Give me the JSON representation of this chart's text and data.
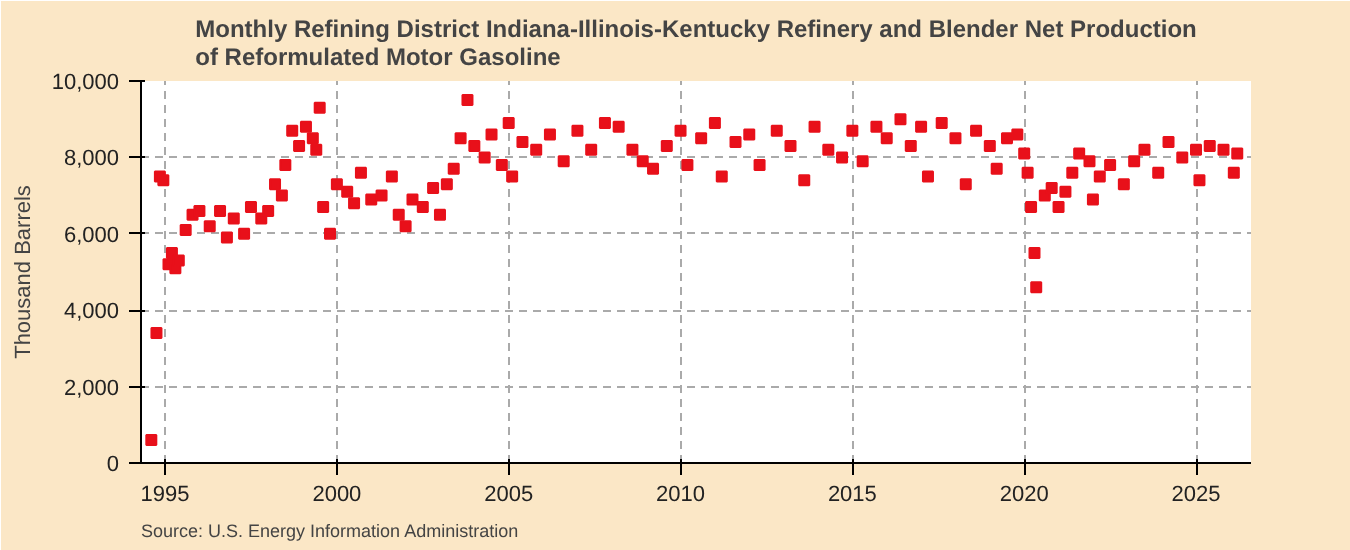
{
  "chart_data": {
    "type": "scatter",
    "title": "Monthly Refining District Indiana-Illinois-Kentucky Refinery and Blender Net Production of Reformulated Motor Gasoline",
    "ylabel": "Thousand Barrels",
    "annotations": [
      "Source: U.S. Energy Information Administration"
    ],
    "x": [
      1994.6,
      1994.75,
      1994.85,
      1994.95,
      1995.1,
      1995.2,
      1995.3,
      1995.4,
      1995.6,
      1995.8,
      1996.0,
      1996.3,
      1996.6,
      1996.8,
      1997.0,
      1997.3,
      1997.5,
      1997.8,
      1998.0,
      1998.2,
      1998.4,
      1998.5,
      1998.7,
      1998.9,
      1999.1,
      1999.3,
      1999.4,
      1999.5,
      1999.6,
      1999.8,
      2000.0,
      2000.3,
      2000.5,
      2000.7,
      2001.0,
      2001.3,
      2001.6,
      2001.8,
      2002.0,
      2002.2,
      2002.5,
      2002.8,
      2003.0,
      2003.2,
      2003.4,
      2003.6,
      2003.8,
      2004.0,
      2004.3,
      2004.5,
      2004.8,
      2005.0,
      2005.1,
      2005.4,
      2005.8,
      2006.2,
      2006.6,
      2007.0,
      2007.4,
      2007.8,
      2008.2,
      2008.6,
      2008.9,
      2009.2,
      2009.6,
      2010.0,
      2010.2,
      2010.6,
      2011.0,
      2011.2,
      2011.6,
      2012.0,
      2012.3,
      2012.8,
      2013.2,
      2013.6,
      2013.9,
      2014.3,
      2014.7,
      2015.0,
      2015.3,
      2015.7,
      2016.0,
      2016.4,
      2016.7,
      2017.0,
      2017.2,
      2017.6,
      2018.0,
      2018.3,
      2018.6,
      2019.0,
      2019.2,
      2019.5,
      2019.8,
      2020.0,
      2020.1,
      2020.2,
      2020.3,
      2020.35,
      2020.6,
      2020.8,
      2021.0,
      2021.2,
      2021.4,
      2021.6,
      2021.9,
      2022.0,
      2022.2,
      2022.5,
      2022.9,
      2023.2,
      2023.5,
      2023.9,
      2024.2,
      2024.6,
      2025.0,
      2025.1,
      2025.4,
      2025.8,
      2026.1,
      2026.2
    ],
    "series": [
      {
        "color": "#e8101a",
        "values": [
          600,
          3400,
          7500,
          7400,
          5200,
          5500,
          5100,
          5300,
          6100,
          6500,
          6600,
          6200,
          6600,
          5900,
          6400,
          6000,
          6700,
          6400,
          6600,
          7300,
          7000,
          7800,
          8700,
          8300,
          8800,
          8500,
          8200,
          9300,
          6700,
          6000,
          7300,
          7100,
          6800,
          7600,
          6900,
          7000,
          7500,
          6500,
          6200,
          6900,
          6700,
          7200,
          6500,
          7300,
          7700,
          8500,
          9500,
          8300,
          8000,
          8600,
          7800,
          8900,
          7500,
          8400,
          8200,
          8600,
          7900,
          8700,
          8200,
          8900,
          8800,
          8200,
          7900,
          7700,
          8300,
          8700,
          7800,
          8500,
          8900,
          7500,
          8400,
          8600,
          7800,
          8700,
          8300,
          7400,
          8800,
          8200,
          8000,
          8700,
          7900,
          8800,
          8500,
          9000,
          8300,
          8800,
          7500,
          8900,
          8500,
          7300,
          8700,
          8300,
          7700,
          8500,
          8600,
          8100,
          7600,
          6700,
          5500,
          4600,
          7000,
          7200,
          6700,
          7100,
          7600,
          8100,
          7900,
          6900,
          7500,
          7800,
          7300,
          7900,
          8200,
          7600,
          8400,
          8000,
          8200,
          7400,
          8300,
          8200,
          7600,
          8100
        ]
      }
    ],
    "marker": "square",
    "xlim": [
      1994.3,
      2026.6
    ],
    "xticks": [
      1995,
      2000,
      2005,
      2010,
      2015,
      2020,
      2025
    ],
    "ylim": [
      0,
      10000
    ],
    "yticks": [
      {
        "value": 0,
        "label": "0"
      },
      {
        "value": 2000,
        "label": "2,000"
      },
      {
        "value": 4000,
        "label": "4,000"
      },
      {
        "value": 6000,
        "label": "6,000"
      },
      {
        "value": 8000,
        "label": "8,000"
      },
      {
        "value": 10000,
        "label": "10,000"
      }
    ],
    "grid": true
  }
}
